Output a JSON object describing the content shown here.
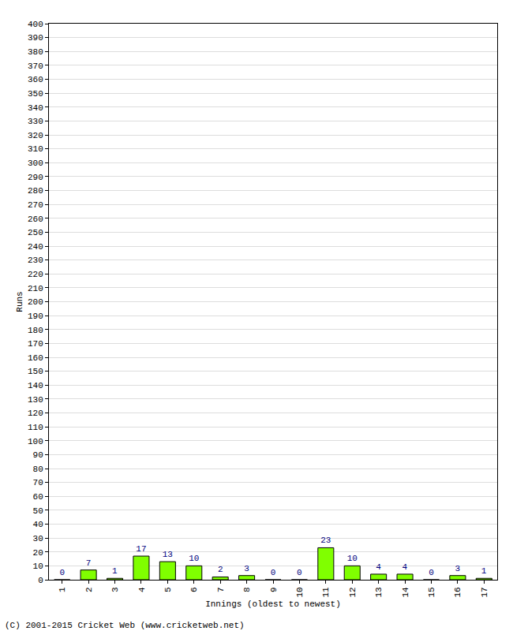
{
  "chart_data": {
    "type": "bar",
    "x_label": "Innings (oldest to newest)",
    "y_label": "Runs",
    "annotations": [
      "(C) 2001-2015 Cricket Web (www.cricketweb.net)"
    ],
    "categories": [
      "1",
      "2",
      "3",
      "4",
      "5",
      "6",
      "7",
      "8",
      "9",
      "10",
      "11",
      "12",
      "13",
      "14",
      "15",
      "16",
      "17"
    ],
    "values": [
      0,
      7,
      1,
      17,
      13,
      10,
      2,
      3,
      0,
      0,
      23,
      10,
      4,
      4,
      0,
      3,
      1
    ],
    "color": "#80ff00",
    "ylim": [
      0,
      400
    ],
    "yticks": [
      0,
      10,
      20,
      30,
      40,
      50,
      60,
      70,
      80,
      90,
      100,
      110,
      120,
      130,
      140,
      150,
      160,
      170,
      180,
      190,
      200,
      210,
      220,
      230,
      240,
      250,
      260,
      270,
      280,
      290,
      300,
      310,
      320,
      330,
      340,
      350,
      360,
      370,
      380,
      390,
      400
    ],
    "grid": true,
    "data_labels": true
  }
}
